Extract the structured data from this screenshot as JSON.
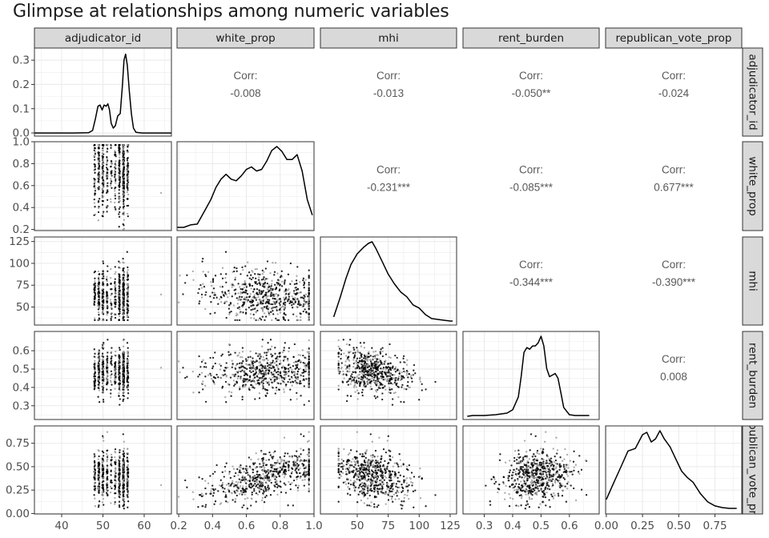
{
  "title": "Glimpse at relationships among numeric variables",
  "chart_data": {
    "type": "pairs",
    "variables": [
      "adjudicator_id",
      "white_prop",
      "mhi",
      "rent_burden",
      "republican_vote_prop"
    ],
    "row_labels": [
      "adjudicator_id",
      "white_prop",
      "mhi",
      "rent_burden",
      "republican_vote_prop"
    ],
    "x_ranges": [
      [
        33.4,
        66.6
      ],
      [
        0.19,
        1.0
      ],
      [
        20.3,
        130.2
      ],
      [
        0.225,
        0.705
      ],
      [
        -0.005,
        0.935
      ]
    ],
    "y_ranges": [
      [
        -0.013,
        0.35
      ],
      [
        0.19,
        1.0
      ],
      [
        29.4,
        130.2
      ],
      [
        0.225,
        0.705
      ],
      [
        -0.005,
        0.935
      ]
    ],
    "x_ticks": [
      [
        40,
        50,
        60
      ],
      [
        0.2,
        0.4,
        0.6,
        0.8,
        1.0
      ],
      [
        50,
        75,
        100,
        125
      ],
      [
        0.3,
        0.4,
        0.5,
        0.6
      ],
      [
        0.0,
        0.25,
        0.5,
        0.75
      ]
    ],
    "x_tick_labels": [
      [
        "40",
        "50",
        "60"
      ],
      [
        "0.2",
        "0.4",
        "0.6",
        "0.8",
        "1.0"
      ],
      [
        "50",
        "75",
        "100",
        "125"
      ],
      [
        "0.3",
        "0.4",
        "0.5",
        "0.6"
      ],
      [
        "0.00",
        "0.25",
        "0.50",
        "0.75"
      ]
    ],
    "y_ticks": [
      [
        0.0,
        0.1,
        0.2,
        0.3
      ],
      [
        0.2,
        0.4,
        0.6,
        0.8,
        1.0
      ],
      [
        50,
        75,
        100,
        125
      ],
      [
        0.3,
        0.4,
        0.5,
        0.6
      ],
      [
        0.0,
        0.25,
        0.5,
        0.75
      ]
    ],
    "y_tick_labels": [
      [
        "0.0",
        "0.1",
        "0.2",
        "0.3"
      ],
      [
        "0.2",
        "0.4",
        "0.6",
        "0.8",
        "1.0"
      ],
      [
        "50",
        "75",
        "100",
        "125"
      ],
      [
        "0.3",
        "0.4",
        "0.5",
        "0.6"
      ],
      [
        "0.00",
        "0.25",
        "0.50",
        "0.75"
      ]
    ],
    "correlation_label": "Corr:",
    "correlations": [
      {
        "row": 0,
        "col": 1,
        "value": "-0.008"
      },
      {
        "row": 0,
        "col": 2,
        "value": "-0.013"
      },
      {
        "row": 0,
        "col": 3,
        "value": "-0.050**"
      },
      {
        "row": 0,
        "col": 4,
        "value": "-0.024"
      },
      {
        "row": 1,
        "col": 2,
        "value": "-0.231***"
      },
      {
        "row": 1,
        "col": 3,
        "value": "-0.085***"
      },
      {
        "row": 1,
        "col": 4,
        "value": "0.677***"
      },
      {
        "row": 2,
        "col": 3,
        "value": "-0.344***"
      },
      {
        "row": 2,
        "col": 4,
        "value": "-0.390***"
      },
      {
        "row": 3,
        "col": 4,
        "value": "0.008"
      }
    ],
    "densities": [
      {
        "var": "adjudicator_id",
        "x": [
          33.4,
          43,
          46.5,
          47.5,
          48.2,
          48.8,
          49.3,
          49.8,
          50.3,
          50.8,
          51.2,
          51.6,
          52,
          52.5,
          53,
          53.6,
          54.2,
          54.7,
          55.1,
          55.5,
          55.9,
          56.4,
          56.9,
          57.4,
          58,
          59.5,
          66.6
        ],
        "y": [
          0,
          0,
          0.001,
          0.01,
          0.06,
          0.11,
          0.115,
          0.095,
          0.115,
          0.11,
          0.12,
          0.095,
          0.04,
          0.02,
          0.03,
          0.07,
          0.08,
          0.19,
          0.3,
          0.325,
          0.28,
          0.17,
          0.08,
          0.02,
          0.003,
          0,
          0
        ]
      },
      {
        "var": "white_prop",
        "x": [
          0.19,
          0.23,
          0.27,
          0.31,
          0.35,
          0.39,
          0.42,
          0.45,
          0.48,
          0.51,
          0.54,
          0.57,
          0.6,
          0.63,
          0.66,
          0.69,
          0.72,
          0.75,
          0.78,
          0.81,
          0.84,
          0.87,
          0.9,
          0.93,
          0.96,
          0.99
        ],
        "y": [
          0.01,
          0.01,
          0.04,
          0.05,
          0.2,
          0.35,
          0.5,
          0.6,
          0.66,
          0.6,
          0.58,
          0.64,
          0.72,
          0.75,
          0.7,
          0.72,
          0.82,
          0.95,
          1.0,
          0.94,
          0.84,
          0.84,
          0.9,
          0.7,
          0.35,
          0.16
        ]
      },
      {
        "var": "mhi",
        "x": [
          31,
          36,
          41,
          45,
          50,
          55,
          59,
          62,
          65,
          70,
          75,
          80,
          85,
          90,
          95,
          100,
          105,
          110,
          115,
          120,
          125,
          127
        ],
        "y": [
          0.07,
          0.3,
          0.55,
          0.72,
          0.85,
          0.93,
          0.98,
          1.0,
          0.92,
          0.76,
          0.6,
          0.48,
          0.38,
          0.32,
          0.22,
          0.18,
          0.1,
          0.05,
          0.04,
          0.03,
          0.02,
          0.02
        ]
      },
      {
        "var": "rent_burden",
        "x": [
          0.24,
          0.26,
          0.3,
          0.34,
          0.38,
          0.4,
          0.42,
          0.43,
          0.44,
          0.45,
          0.46,
          0.47,
          0.48,
          0.49,
          0.5,
          0.51,
          0.52,
          0.53,
          0.54,
          0.55,
          0.56,
          0.57,
          0.58,
          0.6,
          0.62,
          0.67
        ],
        "y": [
          0.01,
          0.02,
          0.02,
          0.03,
          0.05,
          0.09,
          0.25,
          0.5,
          0.8,
          0.86,
          0.84,
          0.88,
          0.88,
          0.92,
          1.0,
          0.88,
          0.6,
          0.5,
          0.52,
          0.54,
          0.48,
          0.3,
          0.12,
          0.03,
          0.02,
          0.02
        ]
      },
      {
        "var": "republican_vote_prop",
        "x": [
          0.0,
          0.05,
          0.1,
          0.15,
          0.2,
          0.25,
          0.28,
          0.31,
          0.34,
          0.37,
          0.4,
          0.44,
          0.48,
          0.52,
          0.56,
          0.6,
          0.65,
          0.7,
          0.75,
          0.8,
          0.85,
          0.9
        ],
        "y": [
          0.15,
          0.35,
          0.55,
          0.75,
          0.78,
          0.95,
          0.98,
          0.86,
          0.9,
          1.0,
          0.9,
          0.8,
          0.65,
          0.5,
          0.42,
          0.36,
          0.22,
          0.12,
          0.07,
          0.05,
          0.04,
          0.04
        ]
      }
    ],
    "scatter_description": "Lower-triangle panels are scatterplots of each variable pair (hundreds of small black and grey points); point-level values are not individually labelled.",
    "grid": true
  }
}
